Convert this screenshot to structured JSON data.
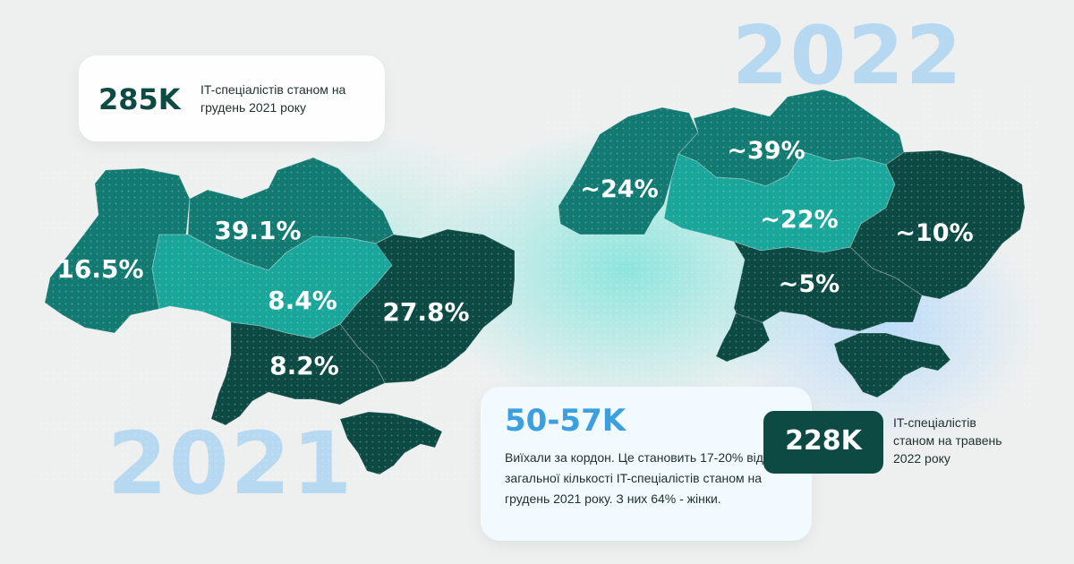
{
  "colors": {
    "dark": "#0d4a44",
    "mid": "#137a72",
    "teal": "#1aa69a",
    "year_text": "#b6d8f0",
    "accent_blue": "#3b9fe0"
  },
  "years": {
    "left": "2021",
    "right": "2022"
  },
  "map_2021": {
    "regions": [
      {
        "area": "west",
        "value": "16.5%",
        "color_role": "mid"
      },
      {
        "area": "north",
        "value": "39.1%",
        "color_role": "mid"
      },
      {
        "area": "center",
        "value": "8.4%",
        "color_role": "teal"
      },
      {
        "area": "east",
        "value": "27.8%",
        "color_role": "dark"
      },
      {
        "area": "south",
        "value": "8.2%",
        "color_role": "dark"
      }
    ]
  },
  "map_2022": {
    "regions": [
      {
        "area": "west",
        "value": "~24%",
        "color_role": "mid"
      },
      {
        "area": "north",
        "value": "~39%",
        "color_role": "mid"
      },
      {
        "area": "center",
        "value": "~22%",
        "color_role": "teal"
      },
      {
        "area": "east",
        "value": "~10%",
        "color_role": "dark"
      },
      {
        "area": "south",
        "value": "~5%",
        "color_role": "dark"
      }
    ]
  },
  "card_2021": {
    "number": "285K",
    "text": "IT-спеціалістів станом на грудень 2021 року"
  },
  "card_emigrated": {
    "number": "50-57K",
    "text": "Виїхали  за кордон. Це становить 17-20% від загальної кількості IT-спеціалістів станом на грудень 2021 року. З них 64% - жінки."
  },
  "card_2022": {
    "number": "228K",
    "text": "IT-спеціалістів станом на травень 2022 року"
  }
}
